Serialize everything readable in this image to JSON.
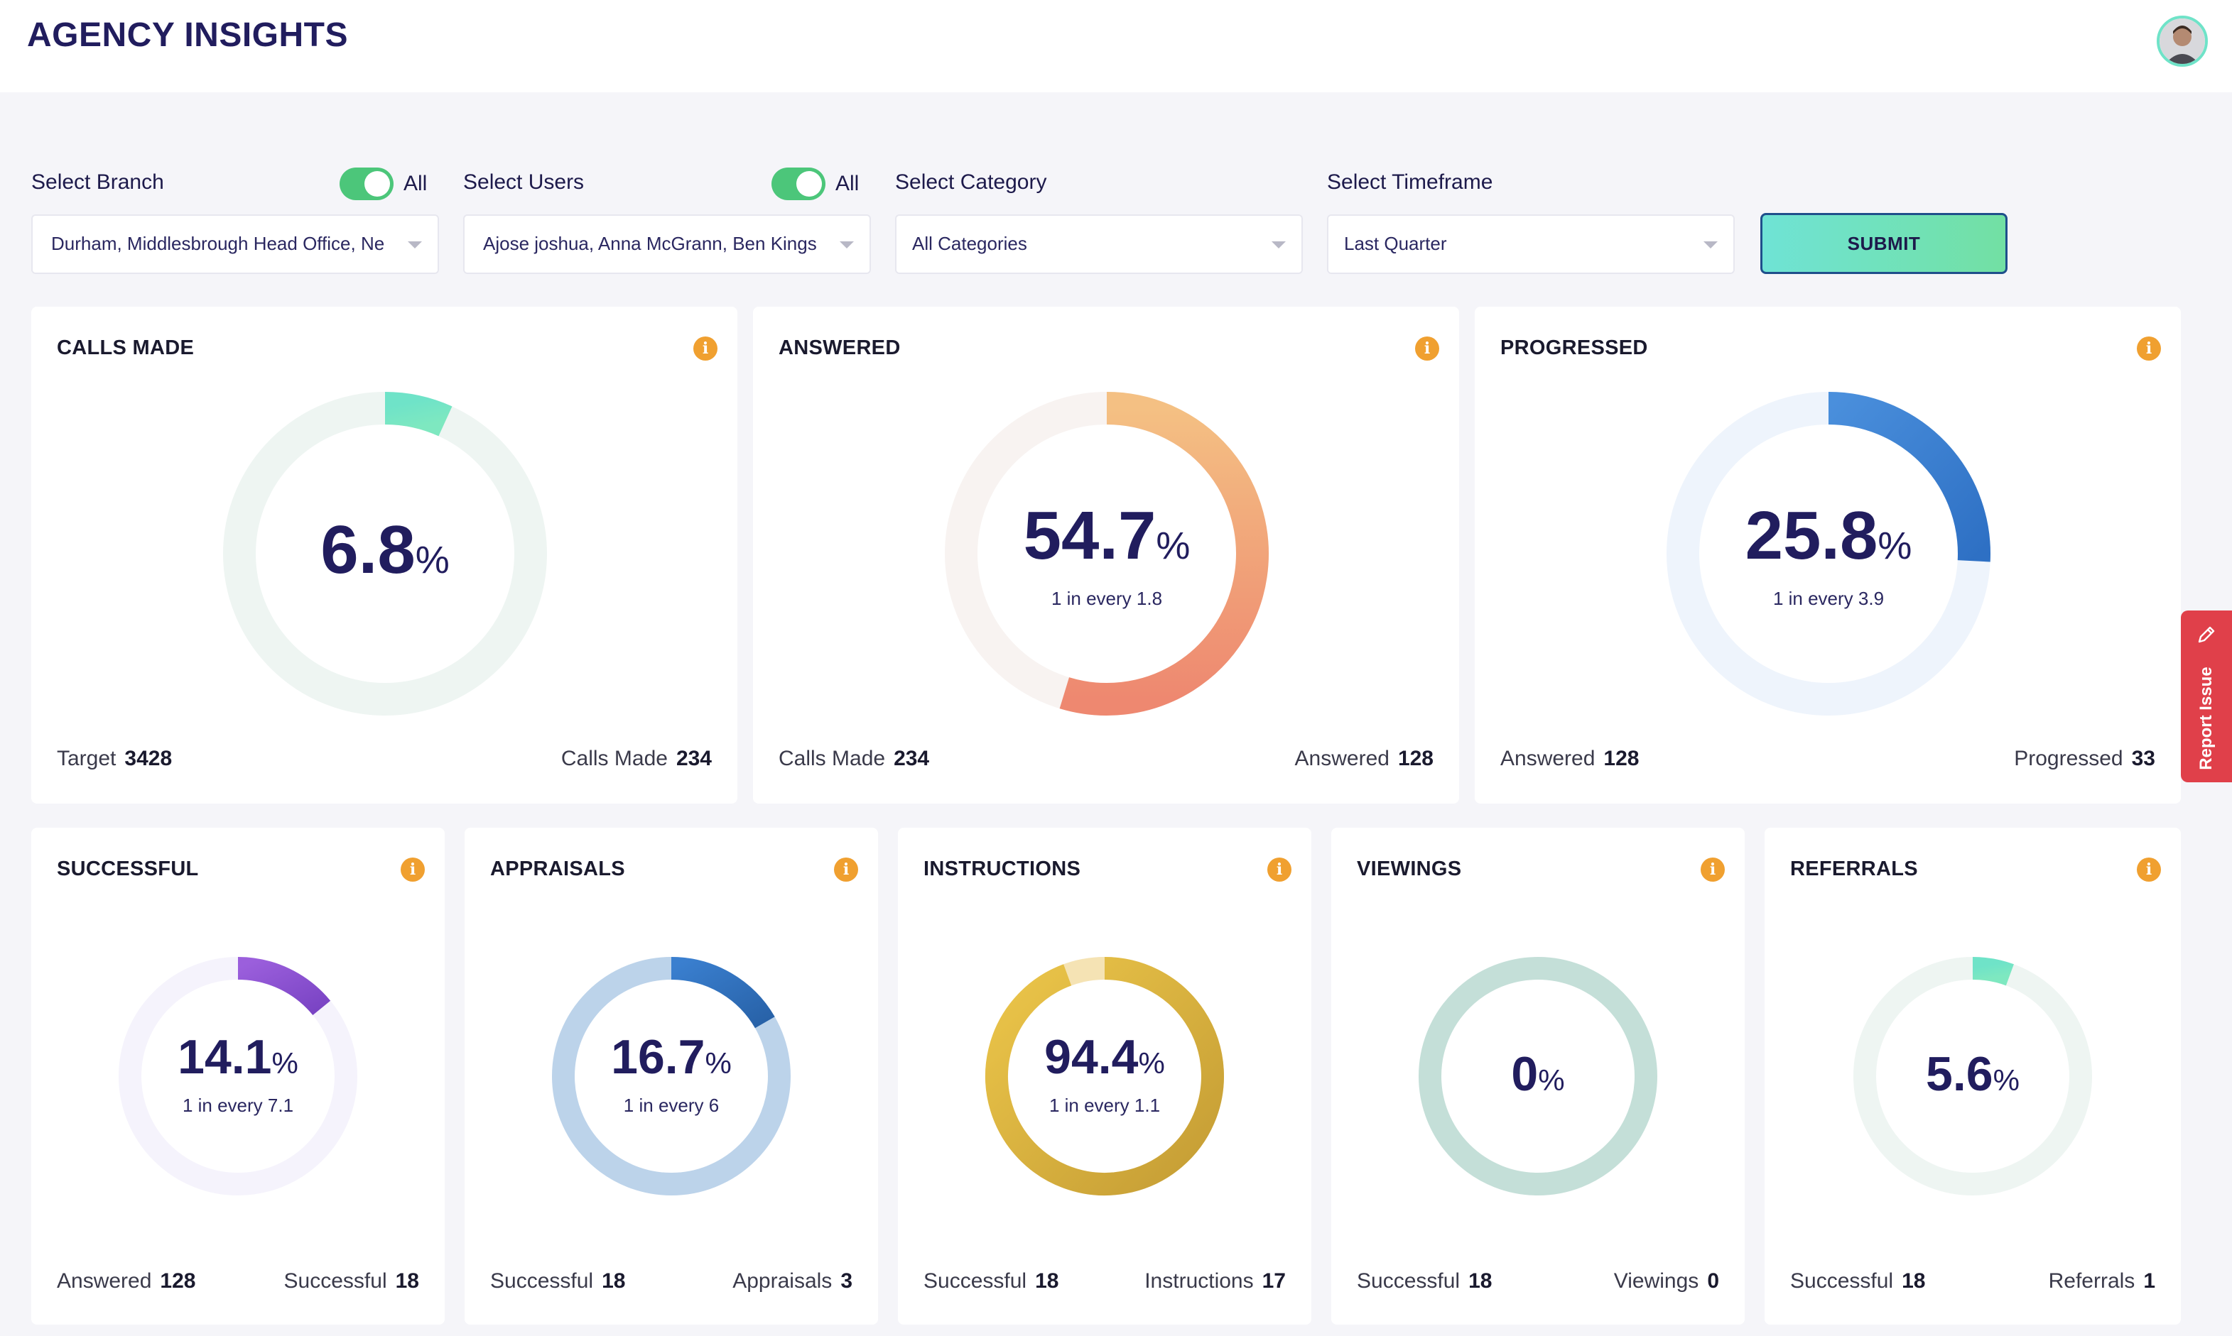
{
  "header": {
    "title": "AGENCY INSIGHTS"
  },
  "filters": {
    "branch": {
      "label": "Select Branch",
      "toggle_label": "All",
      "toggle_on": true,
      "value": "Durham, Middlesbrough Head Office, Ne"
    },
    "users": {
      "label": "Select Users",
      "toggle_label": "All",
      "toggle_on": true,
      "value": "Ajose joshua, Anna McGrann, Ben Kings"
    },
    "category": {
      "label": "Select Category",
      "value": "All Categories"
    },
    "timeframe": {
      "label": "Select Timeframe",
      "value": "Last Quarter"
    },
    "submit_label": "SUBMIT"
  },
  "pct_sign": "%",
  "info_glyph": "i",
  "cards": {
    "calls_made": {
      "title": "CALLS MADE",
      "percent": "6.8",
      "ratio": "",
      "left_label": "Target",
      "left_value": "3428",
      "right_label": "Calls Made",
      "right_value": "234",
      "colors": {
        "track": "#eef5f2",
        "arc_start": "#6fe3c8",
        "arc_end": "#7ee8c0"
      }
    },
    "answered": {
      "title": "ANSWERED",
      "percent": "54.7",
      "ratio": "1 in every 1.8",
      "left_label": "Calls Made",
      "left_value": "234",
      "right_label": "Answered",
      "right_value": "128",
      "colors": {
        "track": "#f8f3f1",
        "arc_start": "#f4c083",
        "arc_end": "#ee8870"
      }
    },
    "progressed": {
      "title": "PROGRESSED",
      "percent": "25.8",
      "ratio": "1 in every 3.9",
      "left_label": "Answered",
      "left_value": "128",
      "right_label": "Progressed",
      "right_value": "33",
      "colors": {
        "track": "#eef4fc",
        "arc_start": "#4a8fdc",
        "arc_end": "#2e70c4"
      }
    },
    "successful": {
      "title": "SUCCESSFUL",
      "percent": "14.1",
      "ratio": "1 in every 7.1",
      "left_label": "Answered",
      "left_value": "128",
      "right_label": "Successful",
      "right_value": "18",
      "colors": {
        "track": "#f5f3fc",
        "arc_start": "#9b5fdc",
        "arc_end": "#7a44c4"
      }
    },
    "appraisals": {
      "title": "APPRAISALS",
      "percent": "16.7",
      "ratio": "1 in every 6",
      "left_label": "Successful",
      "left_value": "18",
      "right_label": "Appraisals",
      "right_value": "3",
      "colors": {
        "track": "#bcd3ea",
        "arc_start": "#3a7fcf",
        "arc_end": "#2862a8"
      }
    },
    "instructions": {
      "title": "INSTRUCTIONS",
      "percent": "94.4",
      "ratio": "1 in every 1.1",
      "left_label": "Successful",
      "left_value": "18",
      "right_label": "Instructions",
      "right_value": "17",
      "colors": {
        "track": "#f5e3b4",
        "arc_start": "#ecc64a",
        "arc_end": "#c49c34"
      }
    },
    "viewings": {
      "title": "VIEWINGS",
      "percent": "0",
      "ratio": "",
      "left_label": "Successful",
      "left_value": "18",
      "right_label": "Viewings",
      "right_value": "0",
      "colors": {
        "track": "#c4dfd8",
        "arc_start": "#8fc9bb",
        "arc_end": "#8fc9bb"
      }
    },
    "referrals": {
      "title": "REFERRALS",
      "percent": "5.6",
      "ratio": "",
      "left_label": "Successful",
      "left_value": "18",
      "right_label": "Referrals",
      "right_value": "1",
      "colors": {
        "track": "#eef5f2",
        "arc_start": "#6fe3c8",
        "arc_end": "#7ee8c0"
      }
    }
  },
  "report_issue_label": "Report Issue"
}
